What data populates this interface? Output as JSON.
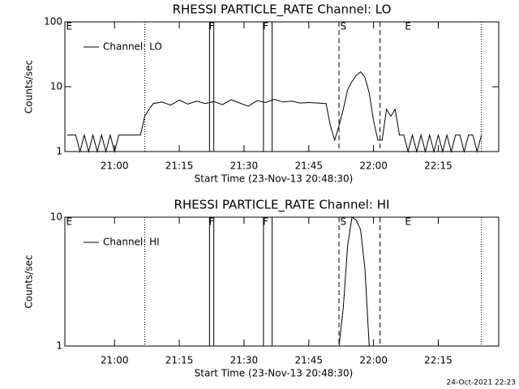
{
  "chart_data": [
    {
      "type": "line",
      "title": "RHESSI PARTICLE_RATE Channel: LO",
      "xlabel": "Start Time (23-Nov-13 20:48:30)",
      "ylabel": "Counts/sec",
      "log_y": true,
      "ylim": [
        1,
        100
      ],
      "yticks": [
        1,
        10,
        100
      ],
      "xlim": [
        "20:48:30",
        "22:29"
      ],
      "xticks": [
        "21:00",
        "21:15",
        "21:30",
        "21:45",
        "22:00",
        "22:15"
      ],
      "legend": "upper left",
      "color": "#000000",
      "x": [
        "20:49",
        "20:51",
        "20:52",
        "20:53",
        "20:54",
        "20:55",
        "20:56",
        "20:57",
        "20:58",
        "20:59",
        "21:00",
        "21:01",
        "21:02",
        "21:04",
        "21:06",
        "21:07",
        "21:08",
        "21:09",
        "21:11",
        "21:13",
        "21:15",
        "21:17",
        "21:19",
        "21:21",
        "21:23",
        "21:25",
        "21:27",
        "21:29",
        "21:31",
        "21:33",
        "21:35",
        "21:37",
        "21:39",
        "21:41",
        "21:43",
        "21:45",
        "21:47",
        "21:49",
        "21:50",
        "21:51",
        "21:52",
        "21:53",
        "21:54",
        "21:55",
        "21:56",
        "21:57",
        "21:58",
        "21:59",
        "22:00",
        "22:01",
        "22:02",
        "22:03",
        "22:04",
        "22:05",
        "22:06",
        "22:07",
        "22:08",
        "22:09",
        "22:10",
        "22:11",
        "22:12",
        "22:13",
        "22:14",
        "22:15",
        "22:16",
        "22:17",
        "22:18",
        "22:19",
        "22:20",
        "22:21",
        "22:22",
        "22:23",
        "22:24",
        "22:25"
      ],
      "series": [
        {
          "name": "Channel: LO",
          "color": "#000000",
          "values": [
            1.8,
            1.8,
            1,
            1.8,
            1,
            1.8,
            1,
            1.8,
            1,
            1.8,
            1,
            1.8,
            1.8,
            1.8,
            1.8,
            3.5,
            4.5,
            5.5,
            5.8,
            5.2,
            6.2,
            5.4,
            6.0,
            5.5,
            5.9,
            5.3,
            6.3,
            5.6,
            5.0,
            6.1,
            5.7,
            6.4,
            5.8,
            6.0,
            5.6,
            5.7,
            5.6,
            5.5,
            2.5,
            1.5,
            2.5,
            4.5,
            9,
            12,
            15,
            17,
            14,
            8,
            3,
            1.5,
            1.5,
            4.5,
            3.5,
            4.5,
            1.8,
            1.8,
            1,
            1.8,
            1,
            1.8,
            1,
            1.8,
            1,
            1.8,
            1,
            1.8,
            1,
            1.8,
            1.8,
            1,
            1.8,
            1.8,
            1,
            1.8
          ]
        }
      ],
      "markers": [
        {
          "x": "21:07",
          "style": "dotted"
        },
        {
          "x": "21:22",
          "style": "solid"
        },
        {
          "x": "21:23",
          "style": "solid"
        },
        {
          "x": "21:34:30",
          "style": "solid"
        },
        {
          "x": "21:36:30",
          "style": "solid"
        },
        {
          "x": "21:52",
          "style": "dashed"
        },
        {
          "x": "22:01:30",
          "style": "dashed"
        },
        {
          "x": "22:25",
          "style": "dotted"
        }
      ],
      "annotations": [
        {
          "text": "E",
          "x": "20:49:30"
        },
        {
          "text": "F",
          "x": "21:22:30"
        },
        {
          "text": "F",
          "x": "21:35"
        },
        {
          "text": "S",
          "x": "21:53"
        },
        {
          "text": "E",
          "x": "22:08"
        }
      ]
    },
    {
      "type": "line",
      "title": "RHESSI PARTICLE_RATE Channel: HI",
      "xlabel": "Start Time (23-Nov-13 20:48:30)",
      "ylabel": "Counts/sec",
      "log_y": true,
      "ylim": [
        1,
        10
      ],
      "yticks": [
        1,
        10
      ],
      "xlim": [
        "20:48:30",
        "22:29"
      ],
      "xticks": [
        "21:00",
        "21:15",
        "21:30",
        "21:45",
        "22:00",
        "22:15"
      ],
      "legend": "upper left",
      "color": "#000000",
      "x": [
        "20:49",
        "21:52",
        "21:53",
        "21:54",
        "21:55",
        "21:56",
        "21:57",
        "21:58",
        "21:59",
        "22:25"
      ],
      "series": [
        {
          "name": "Channel: HI",
          "color": "#000000",
          "values": [
            1,
            1,
            2,
            6,
            10,
            9.5,
            8,
            4,
            1,
            1
          ]
        }
      ],
      "markers": [
        {
          "x": "21:07",
          "style": "dotted"
        },
        {
          "x": "21:22",
          "style": "solid"
        },
        {
          "x": "21:23",
          "style": "solid"
        },
        {
          "x": "21:34:30",
          "style": "solid"
        },
        {
          "x": "21:36:30",
          "style": "solid"
        },
        {
          "x": "21:52",
          "style": "dashed"
        },
        {
          "x": "22:01:30",
          "style": "dashed"
        },
        {
          "x": "22:25",
          "style": "dotted"
        }
      ],
      "annotations": [
        {
          "text": "E",
          "x": "20:49:30"
        },
        {
          "text": "F",
          "x": "21:22:30"
        },
        {
          "text": "F",
          "x": "21:35"
        },
        {
          "text": "S",
          "x": "21:53"
        },
        {
          "text": "E",
          "x": "22:08"
        }
      ]
    }
  ],
  "footer": "24-Oct-2021 22:23"
}
